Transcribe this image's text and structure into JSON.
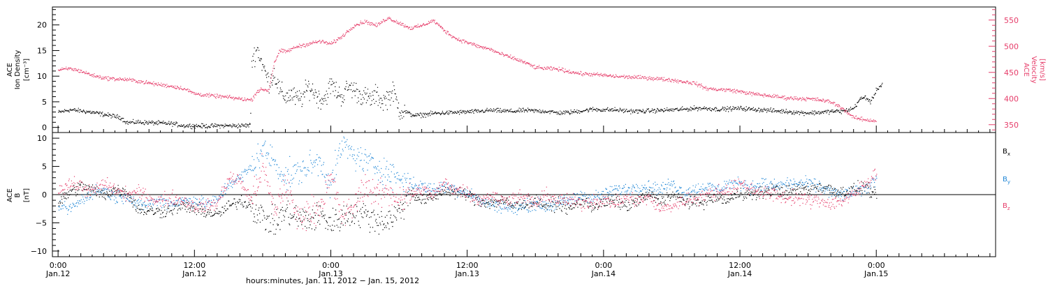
{
  "colors": {
    "black": "#000000",
    "pink": "#e63d6a",
    "blue": "#1f86d6",
    "axis": "#000000"
  },
  "chart_data": [
    {
      "type": "scatter",
      "panel": "top",
      "left_ylabel_lines": [
        "ACE",
        "Ion Density",
        "[cm⁻³]"
      ],
      "right_ylabel_lines": [
        "ACE",
        "Velocity",
        "[km/s]"
      ],
      "left_ylim": [
        -1,
        23.5
      ],
      "right_ylim": [
        335,
        575
      ],
      "left_yticks": [
        0,
        5,
        10,
        15,
        20
      ],
      "left_ytick_labels": [
        "0",
        "5",
        "10",
        "15",
        "20"
      ],
      "right_yticks": [
        350,
        400,
        450,
        500,
        550
      ],
      "right_ytick_labels": [
        "350",
        "400",
        "450",
        "500",
        "550"
      ],
      "x_hours_from_jan12_0000": true,
      "series": [
        {
          "axis": "left",
          "color": "black",
          "noise": 0.35,
          "x": [
            0,
            1,
            2,
            3,
            4,
            5,
            5.5,
            6,
            7,
            8,
            9,
            10,
            11,
            12,
            13,
            14,
            15,
            16,
            16.9,
            17.0,
            17.5,
            18.0,
            18.5,
            19,
            19.5,
            20,
            20.5,
            21,
            21.5,
            22,
            22.5,
            23,
            23.5,
            24,
            24.5,
            25,
            25.5,
            26,
            26.5,
            27,
            27.5,
            28,
            28.5,
            29,
            29.5,
            30,
            30.5,
            31,
            31.5,
            32,
            33,
            34,
            35,
            36,
            37,
            38,
            39,
            40,
            41,
            42,
            43,
            44,
            45,
            46,
            47,
            48,
            49,
            50,
            51,
            52,
            53,
            54,
            55,
            56,
            57,
            58,
            59,
            60,
            61,
            62,
            63,
            64,
            65,
            66,
            67,
            68,
            69,
            70,
            70.5,
            71,
            71.5,
            72,
            72.5
          ],
          "y": [
            3.0,
            3.5,
            3.3,
            3.0,
            2.6,
            2.2,
            2.0,
            1.0,
            1.1,
            1.0,
            0.9,
            0.8,
            0.4,
            0.4,
            0.3,
            0.4,
            0.4,
            0.4,
            0.5,
            13.0,
            15.5,
            12.0,
            9.0,
            10.5,
            7.0,
            6.0,
            6.5,
            5.5,
            6.0,
            8.0,
            7.0,
            5.5,
            6.0,
            8.5,
            7.0,
            6.0,
            8.0,
            7.5,
            6.5,
            6.0,
            5.5,
            6.5,
            5.0,
            6.0,
            7.0,
            3.5,
            3.2,
            2.6,
            2.4,
            2.5,
            2.8,
            2.9,
            3.0,
            3.1,
            3.2,
            3.4,
            3.3,
            3.2,
            3.4,
            3.3,
            3.2,
            2.9,
            3.0,
            3.3,
            3.6,
            3.5,
            3.5,
            3.3,
            3.2,
            3.3,
            3.4,
            3.5,
            3.6,
            3.8,
            3.8,
            3.6,
            3.7,
            3.8,
            3.6,
            3.5,
            3.3,
            3.2,
            3.0,
            2.9,
            3.0,
            3.2,
            3.2,
            3.8,
            5.5,
            6.0,
            5.0,
            7.5,
            8.5
          ]
        },
        {
          "axis": "right",
          "color": "pink",
          "noise": 3,
          "x": [
            0,
            1,
            2,
            3,
            4,
            5,
            6,
            7,
            8,
            9,
            10,
            11,
            12,
            13,
            14,
            15,
            16,
            17,
            17.5,
            18,
            18.5,
            19,
            19.5,
            20,
            21,
            22,
            23,
            24,
            25,
            26,
            27,
            28,
            29,
            30,
            31,
            32,
            33,
            34,
            35,
            36,
            37,
            38,
            39,
            40,
            41,
            42,
            43,
            44,
            45,
            46,
            47,
            48,
            49,
            50,
            51,
            52,
            53,
            54,
            55,
            56,
            57,
            58,
            59,
            60,
            61,
            62,
            63,
            64,
            65,
            66,
            67,
            68,
            69,
            70,
            71,
            72
          ],
          "y": [
            455,
            458,
            453,
            445,
            440,
            438,
            437,
            434,
            430,
            427,
            424,
            420,
            410,
            407,
            405,
            403,
            400,
            398,
            415,
            418,
            416,
            470,
            492,
            490,
            500,
            505,
            510,
            505,
            520,
            540,
            548,
            540,
            555,
            545,
            535,
            540,
            550,
            530,
            515,
            508,
            500,
            495,
            485,
            478,
            470,
            460,
            458,
            457,
            452,
            448,
            447,
            445,
            443,
            442,
            441,
            440,
            438,
            436,
            433,
            430,
            420,
            418,
            417,
            414,
            410,
            407,
            405,
            402,
            401,
            400,
            398,
            394,
            382,
            364,
            360,
            358
          ]
        }
      ]
    },
    {
      "type": "scatter",
      "panel": "bottom",
      "left_ylabel_lines": [
        "ACE",
        "B",
        "[nT]"
      ],
      "ylim": [
        -11,
        11
      ],
      "yticks": [
        -10,
        -5,
        0,
        5,
        10
      ],
      "ytick_labels": [
        "−10",
        "−5",
        "0",
        "5",
        "10"
      ],
      "zero_line": true,
      "legend": [
        {
          "text": "B",
          "sub": "x",
          "color": "black"
        },
        {
          "text": "B",
          "sub": "y",
          "color": "blue"
        },
        {
          "text": "B",
          "sub": "z",
          "color": "pink"
        }
      ],
      "series": [
        {
          "name": "Bx",
          "color": "black",
          "noise": 0.9,
          "x": [
            0,
            1,
            2,
            3,
            4,
            5,
            6,
            7,
            8,
            9,
            10,
            11,
            12,
            13,
            14,
            15,
            16,
            17,
            18,
            19,
            20,
            21,
            22,
            23,
            24,
            25,
            26,
            27,
            28,
            29,
            30,
            31,
            32,
            33,
            34,
            35,
            36,
            37,
            38,
            39,
            40,
            41,
            42,
            43,
            44,
            45,
            46,
            47,
            48,
            49,
            50,
            51,
            52,
            53,
            54,
            55,
            56,
            57,
            58,
            59,
            60,
            61,
            62,
            63,
            64,
            65,
            66,
            67,
            68,
            69,
            70,
            71,
            72
          ],
          "y": [
            -1.5,
            0.5,
            1.5,
            1.0,
            0.0,
            1.0,
            0.5,
            -2.5,
            -2.8,
            -3.0,
            -2.5,
            -2.0,
            -2.5,
            -3.0,
            -3.5,
            -2.0,
            -1.0,
            -2.0,
            -4.0,
            -5.0,
            -3.0,
            -4.0,
            -4.5,
            -3.5,
            -5.0,
            -4.0,
            -3.0,
            -3.5,
            -4.5,
            -4.5,
            -3.0,
            0.5,
            -1.0,
            -0.5,
            1.0,
            0.5,
            0.0,
            -1.0,
            -1.5,
            -1.0,
            -2.0,
            -1.5,
            -1.0,
            -2.0,
            -1.5,
            -2.5,
            -1.0,
            -2.0,
            -1.5,
            -1.0,
            -2.0,
            -1.0,
            0.0,
            -1.0,
            0.0,
            -1.0,
            -1.5,
            -1.0,
            -0.5,
            -1.0,
            0.5,
            0.0,
            0.5,
            1.0,
            0.5,
            1.0,
            1.2,
            1.5,
            1.0,
            0.5,
            1.0,
            1.5,
            -0.5
          ]
        },
        {
          "name": "By",
          "color": "blue",
          "noise": 0.9,
          "x": [
            0,
            1,
            2,
            3,
            4,
            5,
            6,
            7,
            8,
            9,
            10,
            11,
            12,
            13,
            14,
            15,
            16,
            17,
            18,
            19,
            20,
            21,
            22,
            23,
            24,
            25,
            26,
            27,
            28,
            29,
            30,
            31,
            32,
            33,
            34,
            35,
            36,
            37,
            38,
            39,
            40,
            41,
            42,
            43,
            44,
            45,
            46,
            47,
            48,
            49,
            50,
            51,
            52,
            53,
            54,
            55,
            56,
            57,
            58,
            59,
            60,
            61,
            62,
            63,
            64,
            65,
            66,
            67,
            68,
            69,
            70,
            71,
            72
          ],
          "y": [
            -2.0,
            -2.5,
            -1.0,
            0.5,
            1.0,
            -0.5,
            0.0,
            -2.0,
            -1.5,
            -1.0,
            -1.5,
            -1.0,
            -1.0,
            -1.5,
            -1.0,
            2.0,
            3.0,
            5.0,
            8.0,
            6.0,
            3.0,
            4.0,
            5.0,
            6.0,
            2.0,
            9.0,
            7.0,
            6.0,
            5.0,
            4.0,
            3.0,
            2.0,
            1.5,
            1.0,
            1.5,
            1.0,
            0.5,
            -1.0,
            -1.5,
            -2.0,
            -2.5,
            -2.0,
            -1.5,
            -2.0,
            -1.5,
            -1.0,
            0.0,
            -0.5,
            0.0,
            1.0,
            1.0,
            1.5,
            1.5,
            1.0,
            2.0,
            0.5,
            1.0,
            1.5,
            1.0,
            2.0,
            2.0,
            1.5,
            2.0,
            1.5,
            2.0,
            2.0,
            2.0,
            1.5,
            0.5,
            0.0,
            0.5,
            1.0,
            3.0
          ]
        },
        {
          "name": "Bz",
          "color": "pink",
          "noise": 1.0,
          "x": [
            0,
            1,
            2,
            3,
            4,
            5,
            6,
            7,
            8,
            9,
            10,
            11,
            12,
            13,
            14,
            15,
            16,
            17,
            18,
            19,
            20,
            21,
            22,
            23,
            24,
            25,
            26,
            27,
            28,
            29,
            30,
            31,
            32,
            33,
            34,
            35,
            36,
            37,
            38,
            39,
            40,
            41,
            42,
            43,
            44,
            45,
            46,
            47,
            48,
            49,
            50,
            51,
            52,
            53,
            54,
            55,
            56,
            57,
            58,
            59,
            60,
            61,
            62,
            63,
            64,
            65,
            66,
            67,
            68,
            69,
            70,
            71,
            72
          ],
          "y": [
            1.0,
            2.0,
            1.5,
            0.5,
            2.0,
            1.0,
            0.0,
            0.5,
            -0.5,
            -1.0,
            -0.5,
            -1.0,
            -2.0,
            -2.0,
            -1.5,
            3.0,
            2.5,
            -1.0,
            5.0,
            -3.0,
            2.0,
            -4.0,
            -3.0,
            -2.0,
            3.0,
            -4.0,
            -2.0,
            2.0,
            0.0,
            0.5,
            -0.5,
            0.0,
            1.0,
            0.0,
            2.0,
            1.0,
            0.5,
            -1.0,
            0.0,
            -1.0,
            -0.5,
            -0.5,
            -1.5,
            0.0,
            -1.0,
            -1.0,
            -1.5,
            -1.0,
            -1.0,
            -1.5,
            -0.5,
            -1.0,
            -0.5,
            -2.5,
            -2.0,
            -1.0,
            -0.5,
            0.0,
            0.5,
            1.0,
            2.0,
            1.0,
            0.5,
            0.0,
            -0.5,
            -0.5,
            -1.0,
            -1.0,
            -1.5,
            -1.0,
            0.0,
            2.0,
            4.0
          ]
        }
      ]
    }
  ],
  "x_axis": {
    "range_hours": [
      -0.5,
      82.5
    ],
    "ticks": [
      {
        "h": 0,
        "time": "0:00",
        "date": "Jan.12"
      },
      {
        "h": 12,
        "time": "12:00",
        "date": "Jan.12"
      },
      {
        "h": 24,
        "time": "0:00",
        "date": "Jan.13"
      },
      {
        "h": 36,
        "time": "12:00",
        "date": "Jan.13"
      },
      {
        "h": 48,
        "time": "0:00",
        "date": "Jan.14"
      },
      {
        "h": 60,
        "time": "12:00",
        "date": "Jan.14"
      },
      {
        "h": 72,
        "time": "0:00",
        "date": "Jan.15"
      }
    ],
    "xlabel": "hours:minutes, Jan. 11, 2012 − Jan. 15, 2012"
  }
}
